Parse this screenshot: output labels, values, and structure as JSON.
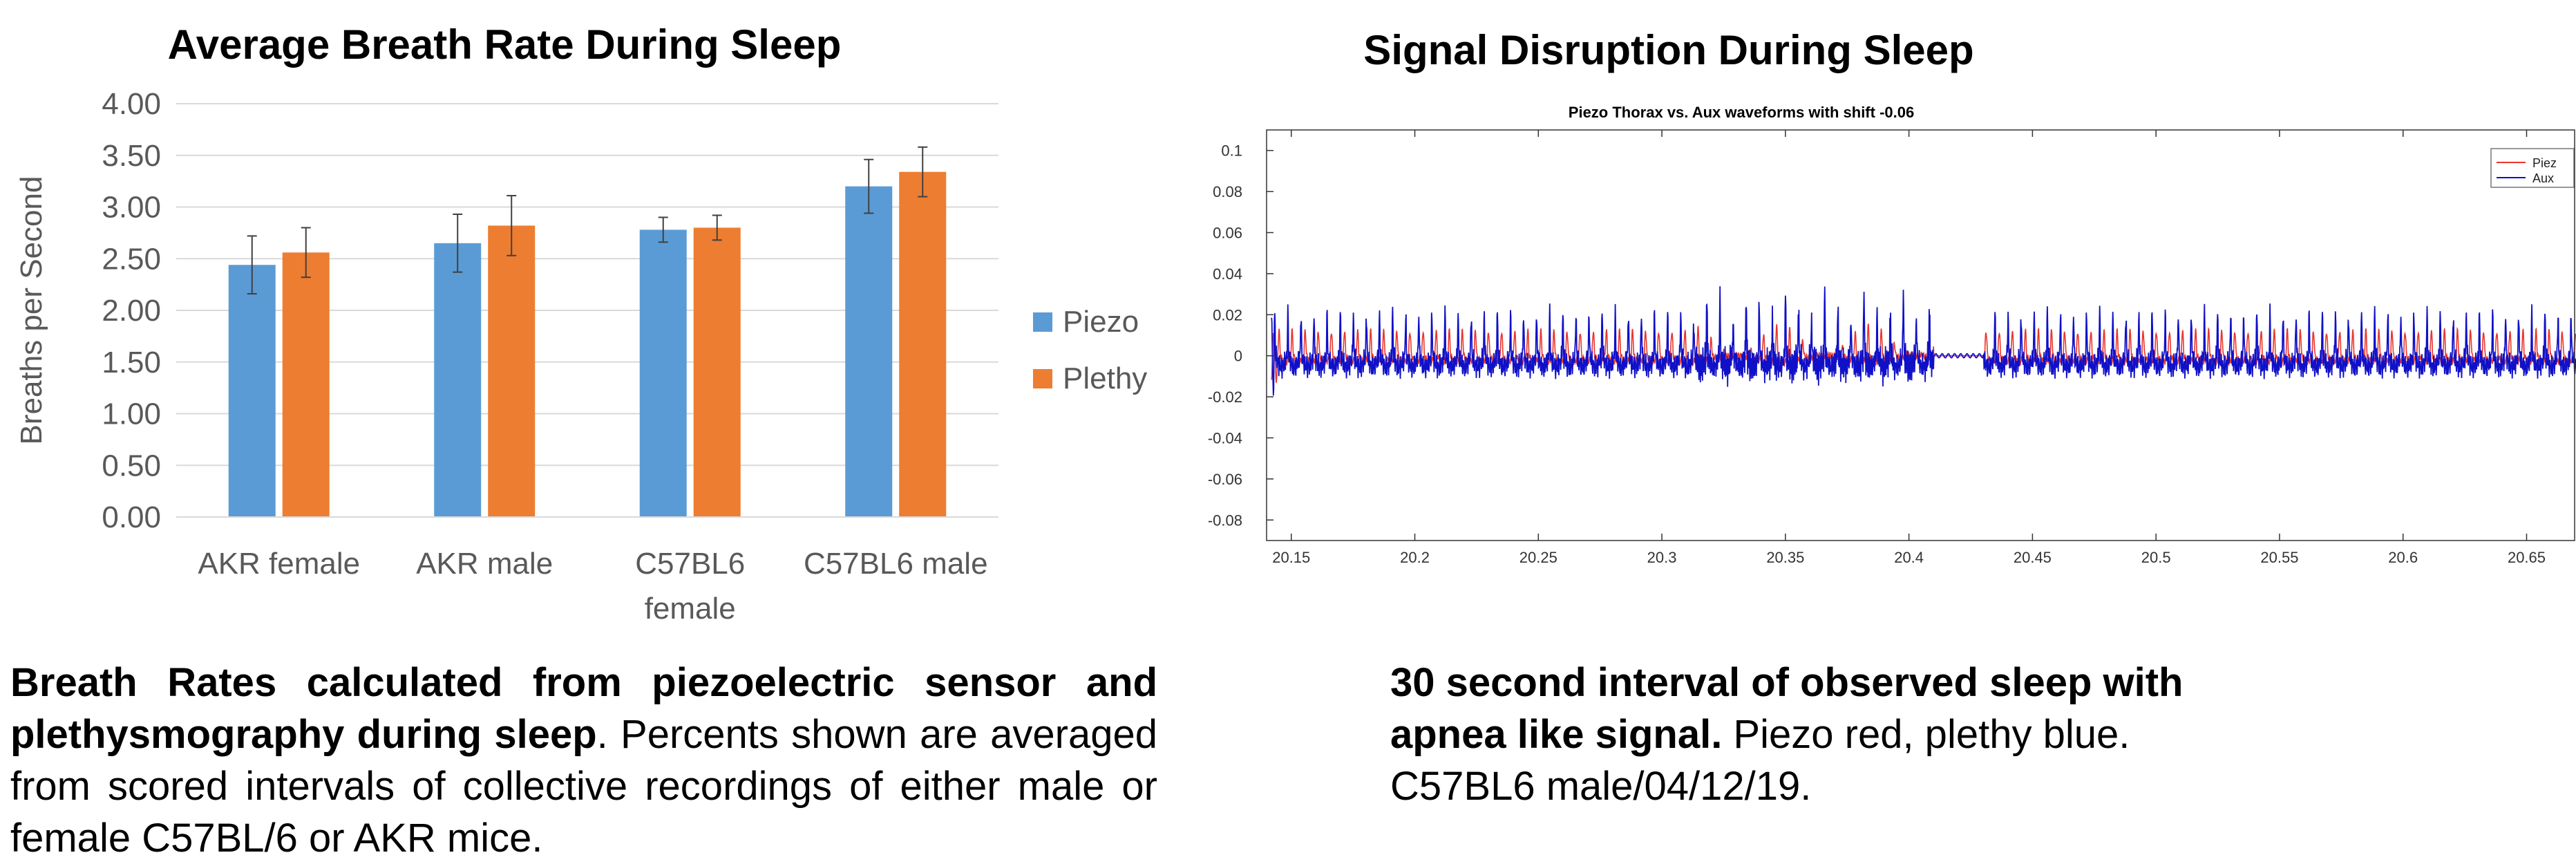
{
  "chart_data": [
    {
      "type": "bar",
      "title": "Average Breath Rate During Sleep",
      "xlabel": "",
      "ylabel": "Breaths per Second",
      "ylim": [
        0,
        4
      ],
      "yticks": [
        "0.00",
        "0.50",
        "1.00",
        "1.50",
        "2.00",
        "2.50",
        "3.00",
        "3.50",
        "4.00"
      ],
      "grid": true,
      "legend_position": "right",
      "categories": [
        "AKR female",
        "AKR male",
        "C57BL6 female",
        "C57BL6 male"
      ],
      "category_lines": [
        [
          "AKR female"
        ],
        [
          "AKR male"
        ],
        [
          "C57BL6",
          "female"
        ],
        [
          "C57BL6 male"
        ]
      ],
      "series": [
        {
          "name": "Piezo",
          "color": "#5B9BD5",
          "values": [
            2.44,
            2.65,
            2.78,
            3.2
          ],
          "errors": [
            0.28,
            0.28,
            0.12,
            0.26
          ]
        },
        {
          "name": "Plethy",
          "color": "#ED7D31",
          "values": [
            2.56,
            2.82,
            2.8,
            3.34
          ],
          "errors": [
            0.24,
            0.29,
            0.12,
            0.24
          ]
        }
      ]
    },
    {
      "type": "line",
      "title": "Signal Disruption During Sleep",
      "subtitle": "Piezo Thorax vs. Aux waveforms with shift -0.06",
      "xlabel": "",
      "ylabel": "",
      "xlim": [
        20.14,
        20.67
      ],
      "ylim": [
        -0.09,
        0.11
      ],
      "xticks": [
        "20.15",
        "20.2",
        "20.25",
        "20.3",
        "20.35",
        "20.4",
        "20.45",
        "20.5",
        "20.55",
        "20.6",
        "20.65"
      ],
      "yticks": [
        "0.1",
        "0.08",
        "0.06",
        "0.04",
        "0.02",
        "0",
        "-0.02",
        "-0.04",
        "-0.06",
        "-0.08"
      ],
      "legend_position": "top-right",
      "series": [
        {
          "name": "Piez",
          "color": "#E8362D"
        },
        {
          "name": "Aux",
          "color": "#1010C8"
        }
      ],
      "waveform": {
        "breath_spacing": 0.0053,
        "disruption_start": 20.31,
        "disruption_end": 20.41,
        "pause_end": 20.43,
        "aux_peak_normal": 0.02,
        "aux_peak_disrupted": 0.031,
        "aux_trough": -0.008,
        "piezo_peak": 0.012
      }
    }
  ],
  "captions": {
    "left_bold": "Breath Rates calculated from piezoelectric sensor and plethysmography during sleep",
    "left_rest": ". Percents shown are averaged from scored intervals of collective recordings of either male or female C57BL/6 or AKR mice.",
    "right_bold": "30 second interval of observed sleep with apnea like signal.",
    "right_rest": "  Piezo red, plethy blue.  C57BL6 male/04/12/19."
  }
}
